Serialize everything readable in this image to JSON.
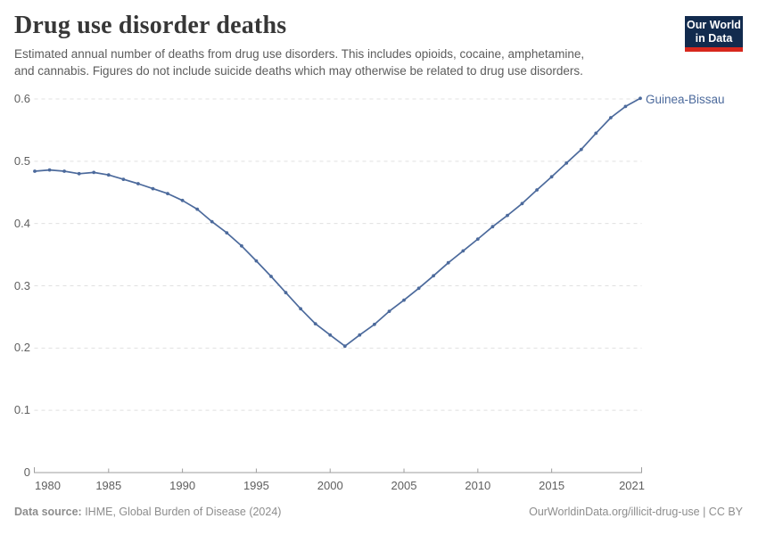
{
  "header": {
    "title": "Drug use disorder deaths",
    "subtitle": "Estimated annual number of deaths from drug use disorders. This includes opioids, cocaine, amphetamine,\nand cannabis. Figures do not include suicide deaths which may otherwise be related to drug use disorders."
  },
  "logo": {
    "line1": "Our World",
    "line2": "in Data",
    "bg_color": "#122b4e",
    "bar_color": "#d7271d"
  },
  "footer": {
    "source_label": "Data source:",
    "source_text": " IHME, Global Burden of Disease (2024)",
    "link_text": "OurWorldinData.org/illicit-drug-use | CC BY"
  },
  "chart_data": {
    "type": "line",
    "title": "Drug use disorder deaths",
    "x": [
      1980,
      1981,
      1982,
      1983,
      1984,
      1985,
      1986,
      1987,
      1988,
      1989,
      1990,
      1991,
      1992,
      1993,
      1994,
      1995,
      1996,
      1997,
      1998,
      1999,
      2000,
      2001,
      2002,
      2003,
      2004,
      2005,
      2006,
      2007,
      2008,
      2009,
      2010,
      2011,
      2012,
      2013,
      2014,
      2015,
      2016,
      2017,
      2018,
      2019,
      2020,
      2021
    ],
    "series": [
      {
        "name": "Guinea-Bissau",
        "color": "#4c6a9c",
        "values": [
          0.484,
          0.486,
          0.484,
          0.48,
          0.482,
          0.478,
          0.471,
          0.464,
          0.456,
          0.448,
          0.437,
          0.423,
          0.403,
          0.385,
          0.364,
          0.34,
          0.315,
          0.289,
          0.263,
          0.239,
          0.221,
          0.203,
          0.221,
          0.238,
          0.259,
          0.277,
          0.296,
          0.316,
          0.337,
          0.356,
          0.375,
          0.395,
          0.413,
          0.432,
          0.454,
          0.475,
          0.497,
          0.519,
          0.545,
          0.57,
          0.588,
          0.601
        ]
      }
    ],
    "x_range": [
      1980,
      2021
    ],
    "y_range": [
      0,
      0.6
    ],
    "x_ticks": [
      1980,
      1985,
      1990,
      1995,
      2000,
      2005,
      2010,
      2015,
      2021
    ],
    "x_tick_labels": [
      "1980",
      "1985",
      "1990",
      "1995",
      "2000",
      "2005",
      "2010",
      "2015",
      "2021"
    ],
    "y_ticks": [
      0,
      0.1,
      0.2,
      0.3,
      0.4,
      0.5,
      0.6
    ],
    "y_tick_labels": [
      "0",
      "0.1",
      "0.2",
      "0.3",
      "0.4",
      "0.5",
      "0.6"
    ],
    "grid": "horizontal dashed gridlines",
    "grid_color": "#e0e0e0",
    "axis_color": "#9e9e9e",
    "legend": "end-of-line entity label"
  }
}
